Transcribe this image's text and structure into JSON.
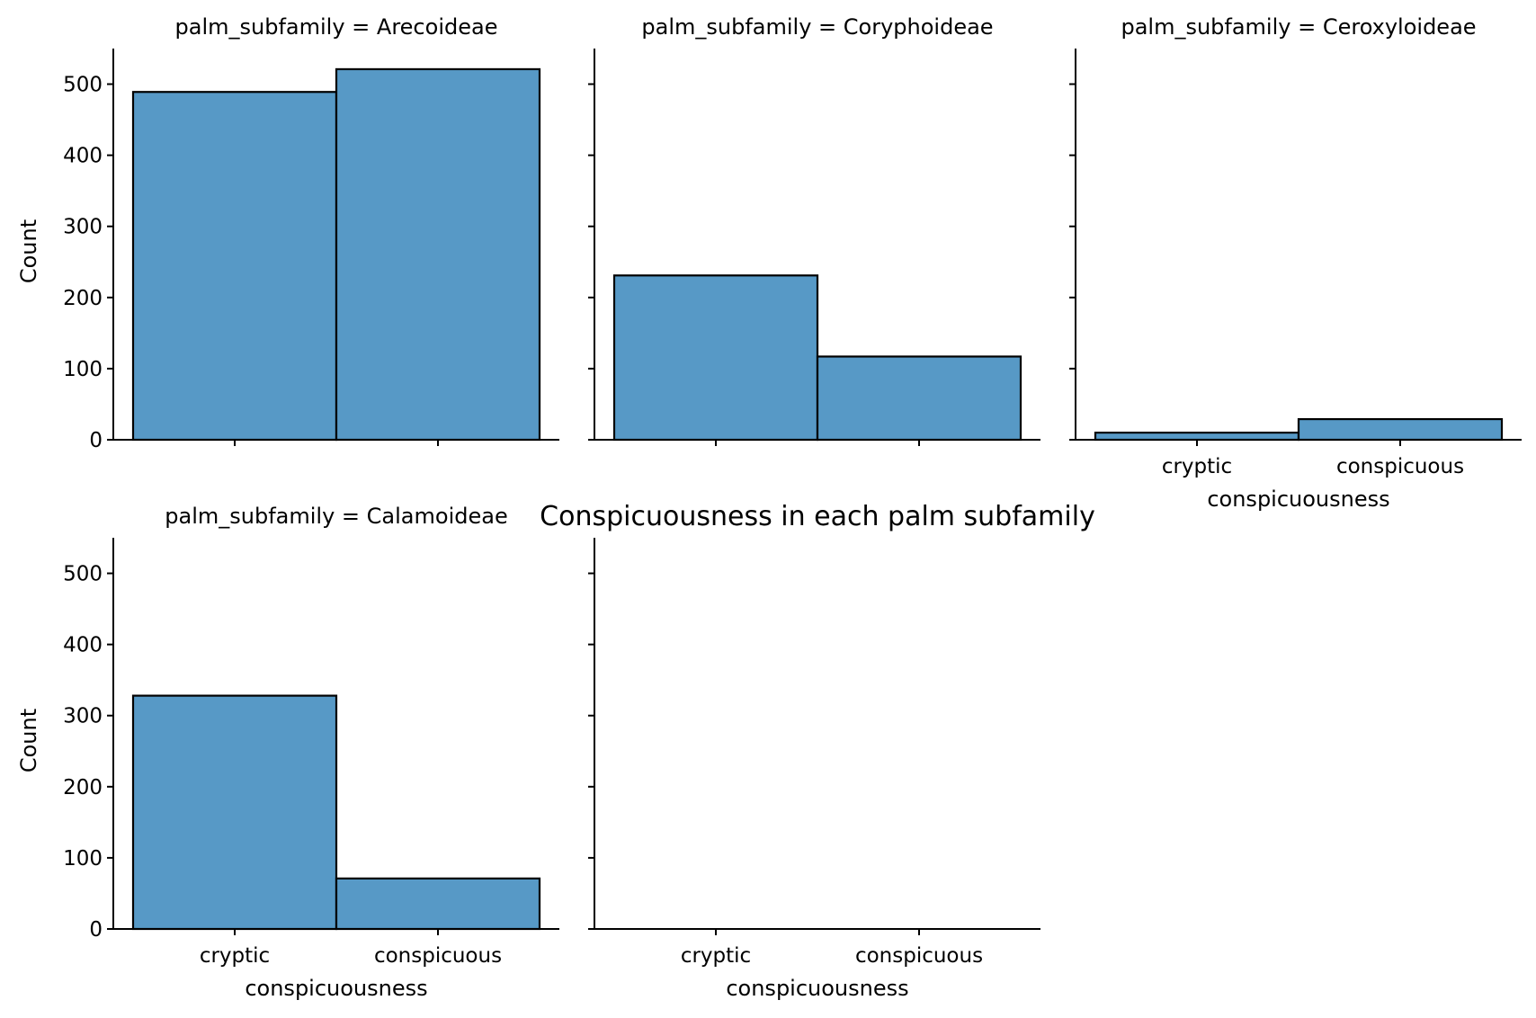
{
  "chart_data": {
    "type": "bar",
    "title": "Conspicuousness in each palm subfamily",
    "xlabel": "conspicuousness",
    "ylabel": "Count",
    "categories": [
      "cryptic",
      "conspicuous"
    ],
    "ylim": [
      0,
      550
    ],
    "yticks": [
      0,
      100,
      200,
      300,
      400,
      500
    ],
    "grid": false,
    "bar_color": "#5799c6",
    "edge_color": "#000000",
    "facets": [
      {
        "title": "palm_subfamily = Arecoideae",
        "values": [
          489,
          521
        ]
      },
      {
        "title": "palm_subfamily = Coryphoideae",
        "values": [
          231,
          117
        ]
      },
      {
        "title": "palm_subfamily = Ceroxyloideae",
        "values": [
          10,
          29
        ]
      },
      {
        "title": "palm_subfamily = Calamoideae",
        "values": [
          328,
          71
        ]
      },
      {
        "title": "",
        "values": []
      }
    ]
  }
}
